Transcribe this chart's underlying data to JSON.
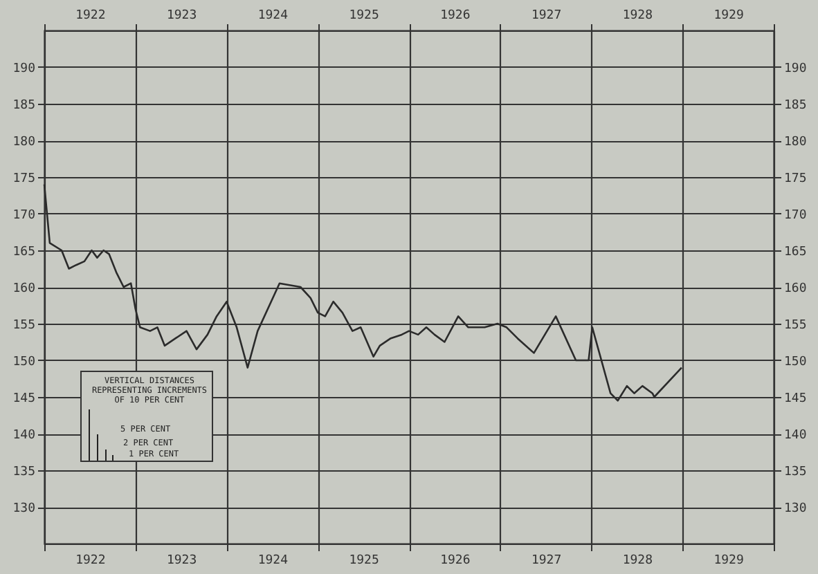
{
  "chart_data": {
    "type": "line",
    "x": [
      1922.0,
      1922.06,
      1922.19,
      1922.27,
      1922.35,
      1922.44,
      1922.52,
      1922.58,
      1922.65,
      1922.71,
      1922.79,
      1922.87,
      1922.95,
      1923.0,
      1923.05,
      1923.16,
      1923.24,
      1923.32,
      1923.44,
      1923.56,
      1923.67,
      1923.79,
      1923.89,
      1924.0,
      1924.11,
      1924.23,
      1924.34,
      1924.58,
      1924.81,
      1924.92,
      1925.0,
      1925.08,
      1925.17,
      1925.27,
      1925.38,
      1925.47,
      1925.61,
      1925.68,
      1925.8,
      1925.92,
      1926.0,
      1926.1,
      1926.19,
      1926.28,
      1926.39,
      1926.54,
      1926.65,
      1926.83,
      1926.97,
      1927.07,
      1927.19,
      1927.37,
      1927.61,
      1927.83,
      1927.97,
      1928.01,
      1928.21,
      1928.29,
      1928.39,
      1928.47,
      1928.56,
      1928.67,
      1928.69,
      1928.99
    ],
    "series": [
      {
        "color": "#2b2b2b",
        "values": [
          174,
          166,
          165,
          162.5,
          163,
          163.5,
          165,
          164,
          165,
          164.5,
          162,
          160,
          160.5,
          157,
          154.5,
          154,
          154.5,
          152,
          153,
          154,
          151.5,
          153.5,
          156,
          158,
          154.5,
          149,
          154,
          160.5,
          160,
          158.5,
          156.5,
          156,
          158,
          156.5,
          154,
          154.5,
          150.5,
          152,
          153,
          153.5,
          154,
          153.5,
          154.5,
          153.5,
          152.5,
          156,
          154.5,
          154.5,
          155,
          154.5,
          153,
          151,
          156,
          150,
          150,
          154.5,
          145.5,
          144.5,
          146.5,
          145.5,
          146.5,
          145.5,
          145,
          149
        ]
      }
    ],
    "xlim": [
      1922,
      1930
    ],
    "xticks": [
      {
        "value": 1922,
        "label": null
      },
      {
        "value": 1922.5,
        "label": "1922"
      },
      {
        "value": 1923,
        "label": null
      },
      {
        "value": 1923.5,
        "label": "1923"
      },
      {
        "value": 1924,
        "label": null
      },
      {
        "value": 1924.5,
        "label": "1924"
      },
      {
        "value": 1925,
        "label": null
      },
      {
        "value": 1925.5,
        "label": "1925"
      },
      {
        "value": 1926,
        "label": null
      },
      {
        "value": 1926.5,
        "label": "1926"
      },
      {
        "value": 1927,
        "label": null
      },
      {
        "value": 1927.5,
        "label": "1927"
      },
      {
        "value": 1928,
        "label": null
      },
      {
        "value": 1928.5,
        "label": "1928"
      },
      {
        "value": 1929,
        "label": null
      },
      {
        "value": 1929.5,
        "label": "1929"
      },
      {
        "value": 1930,
        "label": null
      }
    ],
    "x2lim": [
      1922,
      1930
    ],
    "x2ticks": [
      {
        "value": 1922,
        "label": null
      },
      {
        "value": 1922.5,
        "label": "1922"
      },
      {
        "value": 1923,
        "label": null
      },
      {
        "value": 1923.5,
        "label": "1923"
      },
      {
        "value": 1924,
        "label": null
      },
      {
        "value": 1924.5,
        "label": "1924"
      },
      {
        "value": 1925,
        "label": null
      },
      {
        "value": 1925.5,
        "label": "1925"
      },
      {
        "value": 1926,
        "label": null
      },
      {
        "value": 1926.5,
        "label": "1926"
      },
      {
        "value": 1927,
        "label": null
      },
      {
        "value": 1927.5,
        "label": "1927"
      },
      {
        "value": 1928,
        "label": null
      },
      {
        "value": 1928.5,
        "label": "1928"
      },
      {
        "value": 1929,
        "label": null
      },
      {
        "value": 1929.5,
        "label": "1929"
      },
      {
        "value": 1930,
        "label": null
      }
    ],
    "ylim": [
      125,
      195
    ],
    "yticks": [
      130,
      135,
      140,
      145,
      150,
      155,
      160,
      165,
      170,
      175,
      180,
      185,
      190
    ],
    "y2lim": [
      125,
      195
    ],
    "y2ticks": [
      130,
      135,
      140,
      145,
      150,
      155,
      160,
      165,
      170,
      175,
      180,
      185,
      190
    ],
    "grid": true,
    "annotations": [
      "VERTICAL DISTANCES REPRESENTING INCREMENTS OF 10 PER CENT",
      "5 PER CENT",
      "2 PER CENT",
      "1 PER CENT"
    ]
  }
}
